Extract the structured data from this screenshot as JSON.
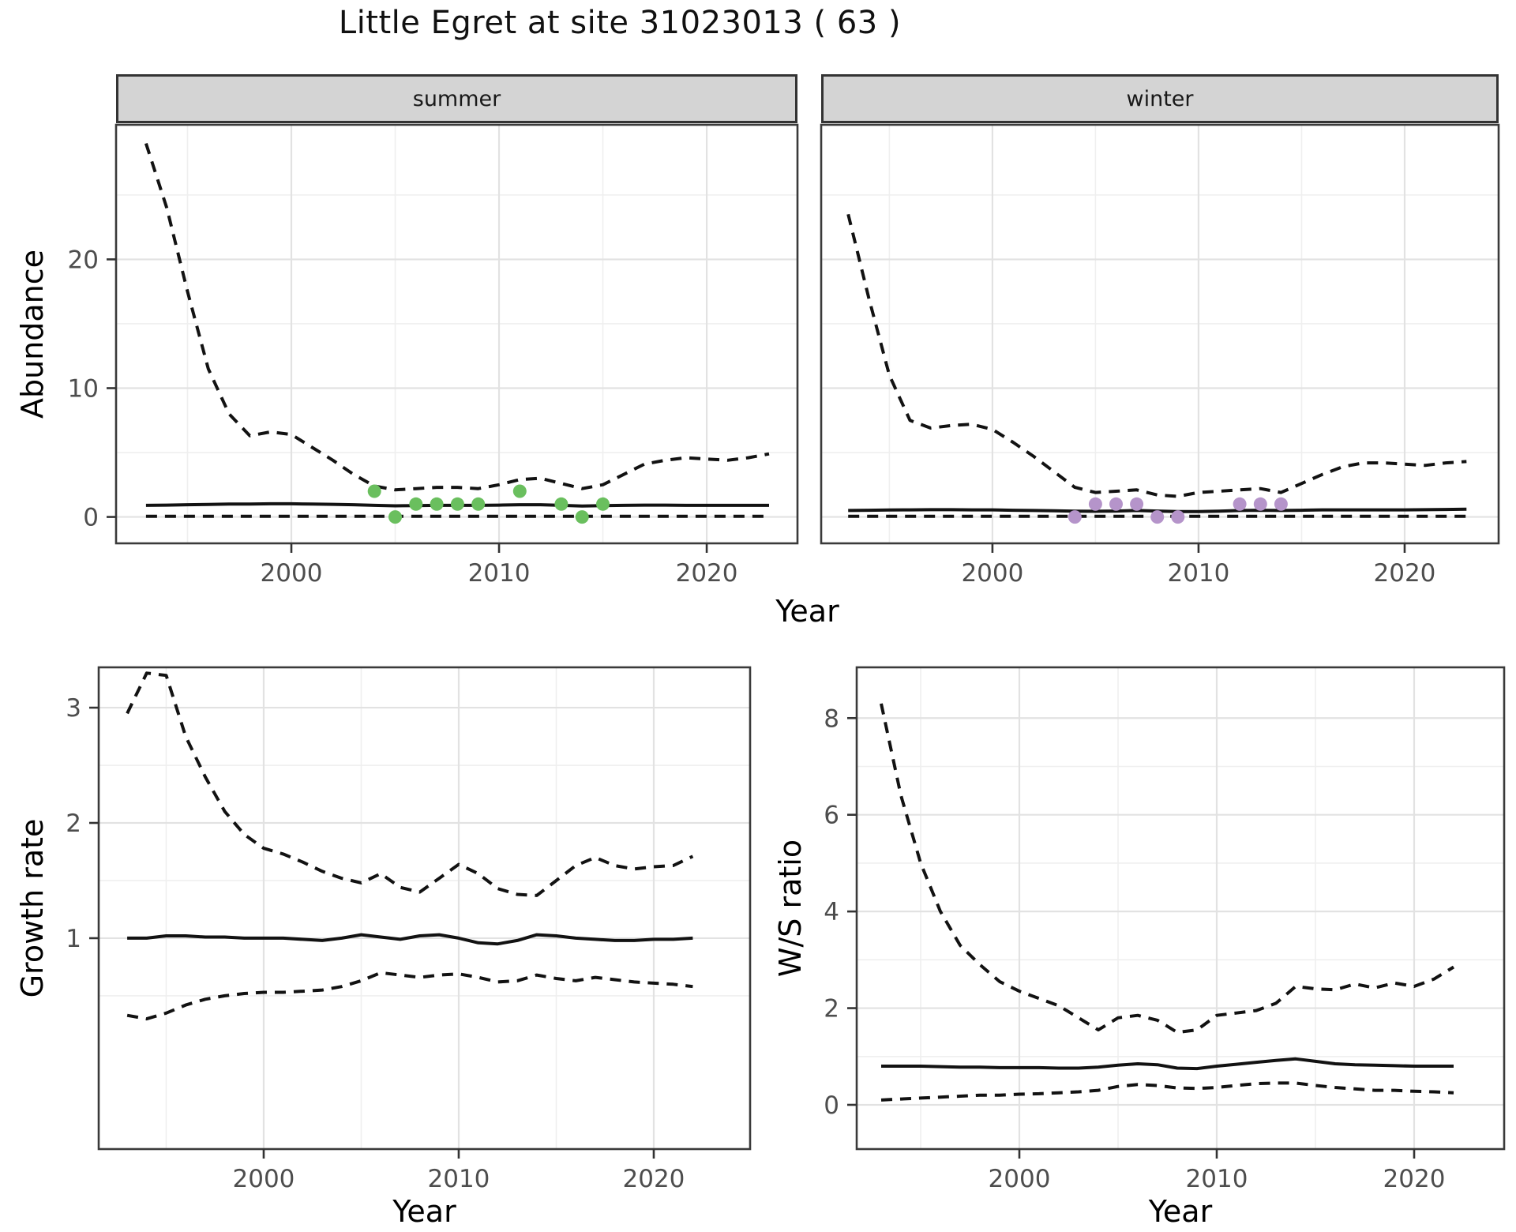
{
  "title": "Little Egret at site 31023013 ( 63 )",
  "facets": {
    "summer": "summer",
    "winter": "winter"
  },
  "axis_titles": {
    "year": "Year",
    "abundance": "Abundance",
    "growth_rate": "Growth rate",
    "ws_ratio": "W/S ratio"
  },
  "colors": {
    "line": "#121212",
    "summer_points": "#6abf5e",
    "winter_points": "#b594ca",
    "strip_bg": "#d4d4d4",
    "grid_major": "#e2e2e2",
    "grid_minor": "#efefef",
    "tick_label": "#4d4d4d",
    "panel_border": "#3a3a3a"
  },
  "chart_data": [
    {
      "id": "abundance_summer",
      "type": "line",
      "facet_label": "summer",
      "xlabel": "Year",
      "ylabel": "Abundance",
      "x": [
        1993,
        1994,
        1995,
        1996,
        1997,
        1998,
        1999,
        2000,
        2001,
        2002,
        2003,
        2004,
        2005,
        2006,
        2007,
        2008,
        2009,
        2010,
        2011,
        2012,
        2013,
        2014,
        2015,
        2016,
        2017,
        2018,
        2019,
        2020,
        2021,
        2022,
        2023
      ],
      "series": [
        {
          "name": "upper_95_ci",
          "style": "dashed",
          "values": [
            29,
            24,
            17.5,
            11.5,
            8,
            6.3,
            6.6,
            6.4,
            5.4,
            4.4,
            3.3,
            2.4,
            2.1,
            2.2,
            2.3,
            2.3,
            2.2,
            2.5,
            2.9,
            3.0,
            2.6,
            2.2,
            2.5,
            3.3,
            4.1,
            4.4,
            4.6,
            4.5,
            4.4,
            4.6,
            4.9
          ]
        },
        {
          "name": "median",
          "style": "solid",
          "values": [
            0.9,
            0.92,
            0.95,
            0.97,
            1.0,
            1.0,
            1.02,
            1.02,
            1.0,
            0.98,
            0.95,
            0.9,
            0.86,
            0.88,
            0.9,
            0.9,
            0.9,
            0.92,
            0.95,
            0.95,
            0.9,
            0.85,
            0.88,
            0.9,
            0.92,
            0.92,
            0.9,
            0.9,
            0.9,
            0.9,
            0.9
          ]
        },
        {
          "name": "lower_95_ci",
          "style": "dashed",
          "values": [
            0.05,
            0.05,
            0.05,
            0.05,
            0.05,
            0.05,
            0.05,
            0.05,
            0.05,
            0.05,
            0.05,
            0.05,
            0.05,
            0.05,
            0.05,
            0.05,
            0.05,
            0.05,
            0.05,
            0.05,
            0.05,
            0.05,
            0.05,
            0.05,
            0.05,
            0.05,
            0.05,
            0.05,
            0.05,
            0.05,
            0.05
          ]
        }
      ],
      "points": {
        "name": "observed_counts",
        "color": "#6abf5e",
        "x": [
          2004,
          2005,
          2006,
          2007,
          2008,
          2009,
          2011,
          2013,
          2014,
          2015
        ],
        "y": [
          2,
          0,
          1,
          1,
          1,
          1,
          2,
          1,
          0,
          1
        ]
      },
      "xlim": [
        1991.56,
        2024.37
      ],
      "ylim": [
        -2.05,
        30.45
      ],
      "xticks": [
        2000,
        2010,
        2020
      ],
      "xticks_minor": [
        1995,
        2005,
        2015
      ],
      "yticks": [
        0,
        10,
        20
      ],
      "yticks_minor": [
        5,
        15,
        25
      ],
      "grid": true
    },
    {
      "id": "abundance_winter",
      "type": "line",
      "facet_label": "winter",
      "xlabel": "Year",
      "ylabel": "Abundance",
      "x": [
        1993,
        1994,
        1995,
        1996,
        1997,
        1998,
        1999,
        2000,
        2001,
        2002,
        2003,
        2004,
        2005,
        2006,
        2007,
        2008,
        2009,
        2010,
        2011,
        2012,
        2013,
        2014,
        2015,
        2016,
        2017,
        2018,
        2019,
        2020,
        2021,
        2022,
        2023
      ],
      "series": [
        {
          "name": "upper_95_ci",
          "style": "dashed",
          "values": [
            23.5,
            17,
            11,
            7.5,
            6.9,
            7.1,
            7.2,
            6.8,
            5.8,
            4.7,
            3.5,
            2.3,
            1.9,
            2.0,
            2.1,
            1.7,
            1.6,
            1.9,
            2.0,
            2.1,
            2.2,
            1.9,
            2.6,
            3.3,
            3.9,
            4.2,
            4.2,
            4.1,
            4.0,
            4.2,
            4.3
          ]
        },
        {
          "name": "median",
          "style": "solid",
          "values": [
            0.5,
            0.52,
            0.54,
            0.55,
            0.56,
            0.56,
            0.55,
            0.55,
            0.52,
            0.5,
            0.48,
            0.45,
            0.44,
            0.46,
            0.5,
            0.46,
            0.42,
            0.42,
            0.45,
            0.5,
            0.52,
            0.5,
            0.52,
            0.55,
            0.55,
            0.55,
            0.55,
            0.55,
            0.56,
            0.58,
            0.6
          ]
        },
        {
          "name": "lower_95_ci",
          "style": "dashed",
          "values": [
            0.05,
            0.05,
            0.05,
            0.05,
            0.05,
            0.05,
            0.05,
            0.05,
            0.05,
            0.05,
            0.05,
            0.05,
            0.05,
            0.05,
            0.05,
            0.05,
            0.05,
            0.05,
            0.05,
            0.05,
            0.05,
            0.05,
            0.05,
            0.05,
            0.05,
            0.05,
            0.05,
            0.05,
            0.05,
            0.05,
            0.05
          ]
        }
      ],
      "points": {
        "name": "observed_counts",
        "color": "#b594ca",
        "x": [
          2004,
          2005,
          2006,
          2007,
          2008,
          2009,
          2012,
          2013,
          2014
        ],
        "y": [
          0,
          1,
          1,
          1,
          0,
          0,
          1,
          1,
          1
        ]
      },
      "xlim": [
        1991.69,
        2024.56
      ],
      "ylim": [
        -2.05,
        30.45
      ],
      "xticks": [
        2000,
        2010,
        2020
      ],
      "xticks_minor": [
        1995,
        2005,
        2015
      ],
      "yticks": [
        0,
        10,
        20
      ],
      "yticks_minor": [
        5,
        15,
        25
      ],
      "grid": true
    },
    {
      "id": "growth_rate",
      "type": "line",
      "facet_label": "",
      "xlabel": "Year",
      "ylabel": "Growth rate",
      "x": [
        1993,
        1994,
        1995,
        1996,
        1997,
        1998,
        1999,
        2000,
        2001,
        2002,
        2003,
        2004,
        2005,
        2006,
        2007,
        2008,
        2009,
        2010,
        2011,
        2012,
        2013,
        2014,
        2015,
        2016,
        2017,
        2018,
        2019,
        2020,
        2021,
        2022
      ],
      "series": [
        {
          "name": "upper_95_ci",
          "style": "dashed",
          "values": [
            2.95,
            3.3,
            3.28,
            2.75,
            2.4,
            2.1,
            1.9,
            1.78,
            1.73,
            1.66,
            1.58,
            1.52,
            1.48,
            1.56,
            1.44,
            1.4,
            1.52,
            1.64,
            1.56,
            1.43,
            1.38,
            1.37,
            1.5,
            1.63,
            1.7,
            1.63,
            1.6,
            1.62,
            1.63,
            1.71
          ]
        },
        {
          "name": "median",
          "style": "solid",
          "values": [
            1.0,
            1.0,
            1.02,
            1.02,
            1.01,
            1.01,
            1.0,
            1.0,
            1.0,
            0.99,
            0.98,
            1.0,
            1.03,
            1.01,
            0.99,
            1.02,
            1.03,
            1.0,
            0.96,
            0.95,
            0.98,
            1.03,
            1.02,
            1.0,
            0.99,
            0.98,
            0.98,
            0.99,
            0.99,
            1.0
          ]
        },
        {
          "name": "lower_95_ci",
          "style": "dashed",
          "values": [
            0.33,
            0.3,
            0.35,
            0.42,
            0.47,
            0.5,
            0.52,
            0.53,
            0.53,
            0.54,
            0.55,
            0.58,
            0.63,
            0.7,
            0.68,
            0.66,
            0.68,
            0.69,
            0.66,
            0.62,
            0.63,
            0.68,
            0.65,
            0.63,
            0.66,
            0.64,
            0.62,
            0.61,
            0.6,
            0.58
          ]
        }
      ],
      "points": null,
      "xlim": [
        1991.54,
        2024.94
      ],
      "ylim": [
        -0.83,
        3.35
      ],
      "xticks": [
        2000,
        2010,
        2020
      ],
      "xticks_minor": [
        1995,
        2005,
        2015
      ],
      "yticks": [
        1,
        2,
        3
      ],
      "yticks_minor": [
        0.5,
        1.5,
        2.5
      ],
      "grid": true
    },
    {
      "id": "ws_ratio",
      "type": "line",
      "facet_label": "",
      "xlabel": "Year",
      "ylabel": "W/S ratio",
      "x": [
        1993,
        1994,
        1995,
        1996,
        1997,
        1998,
        1999,
        2000,
        2001,
        2002,
        2003,
        2004,
        2005,
        2006,
        2007,
        2008,
        2009,
        2010,
        2011,
        2012,
        2013,
        2014,
        2015,
        2016,
        2017,
        2018,
        2019,
        2020,
        2021,
        2022
      ],
      "series": [
        {
          "name": "upper_95_ci",
          "style": "dashed",
          "values": [
            8.3,
            6.4,
            5.0,
            4.0,
            3.3,
            2.9,
            2.55,
            2.35,
            2.2,
            2.05,
            1.8,
            1.55,
            1.8,
            1.85,
            1.75,
            1.5,
            1.55,
            1.85,
            1.9,
            1.95,
            2.1,
            2.45,
            2.4,
            2.38,
            2.5,
            2.42,
            2.52,
            2.45,
            2.6,
            2.85
          ]
        },
        {
          "name": "median",
          "style": "solid",
          "values": [
            0.8,
            0.8,
            0.8,
            0.79,
            0.78,
            0.78,
            0.77,
            0.77,
            0.77,
            0.76,
            0.76,
            0.78,
            0.82,
            0.85,
            0.83,
            0.76,
            0.75,
            0.8,
            0.84,
            0.88,
            0.92,
            0.95,
            0.9,
            0.85,
            0.83,
            0.82,
            0.81,
            0.8,
            0.8,
            0.8
          ]
        },
        {
          "name": "lower_95_ci",
          "style": "dashed",
          "values": [
            0.1,
            0.12,
            0.14,
            0.16,
            0.18,
            0.2,
            0.2,
            0.22,
            0.23,
            0.25,
            0.27,
            0.3,
            0.38,
            0.42,
            0.4,
            0.35,
            0.34,
            0.36,
            0.4,
            0.44,
            0.45,
            0.45,
            0.4,
            0.36,
            0.33,
            0.3,
            0.3,
            0.28,
            0.27,
            0.25
          ]
        }
      ],
      "points": null,
      "xlim": [
        1991.76,
        2024.56
      ],
      "ylim": [
        -0.915,
        9.05
      ],
      "xticks": [
        2000,
        2010,
        2020
      ],
      "xticks_minor": [
        1995,
        2005,
        2015
      ],
      "yticks": [
        0,
        2,
        4,
        6,
        8
      ],
      "yticks_minor": [
        1,
        3,
        5,
        7
      ],
      "grid": true
    }
  ]
}
